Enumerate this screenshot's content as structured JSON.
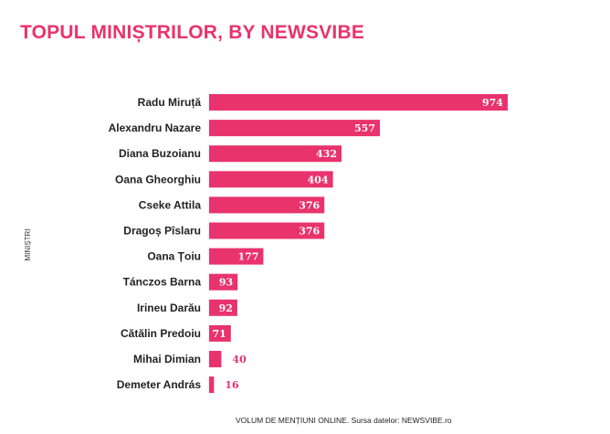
{
  "colors": {
    "accent": "#e8336d",
    "text": "#222222",
    "background": "#ffffff"
  },
  "chart_data": {
    "type": "bar",
    "orientation": "horizontal",
    "title": "TOPUL MINIȘTRILOR, BY NEWSVIBE",
    "xlabel": "VOLUM DE MENȚIUNI ONLINE. Sursa datelor: NEWSVIBE.ro",
    "ylabel": "MINIȘTRI",
    "categories": [
      "Radu Miruță",
      "Alexandru Nazare",
      "Diana Buzoianu",
      "Oana Gheorghiu",
      "Cseke Attila",
      "Dragoș Pîslaru",
      "Oana Țoiu",
      "Tánczos Barna",
      "Irineu Darău",
      "Cătălin Predoiu",
      "Mihai Dimian",
      "Demeter András"
    ],
    "values": [
      974,
      557,
      432,
      404,
      376,
      376,
      177,
      93,
      92,
      71,
      40,
      16
    ],
    "grid": false,
    "legend": false
  }
}
